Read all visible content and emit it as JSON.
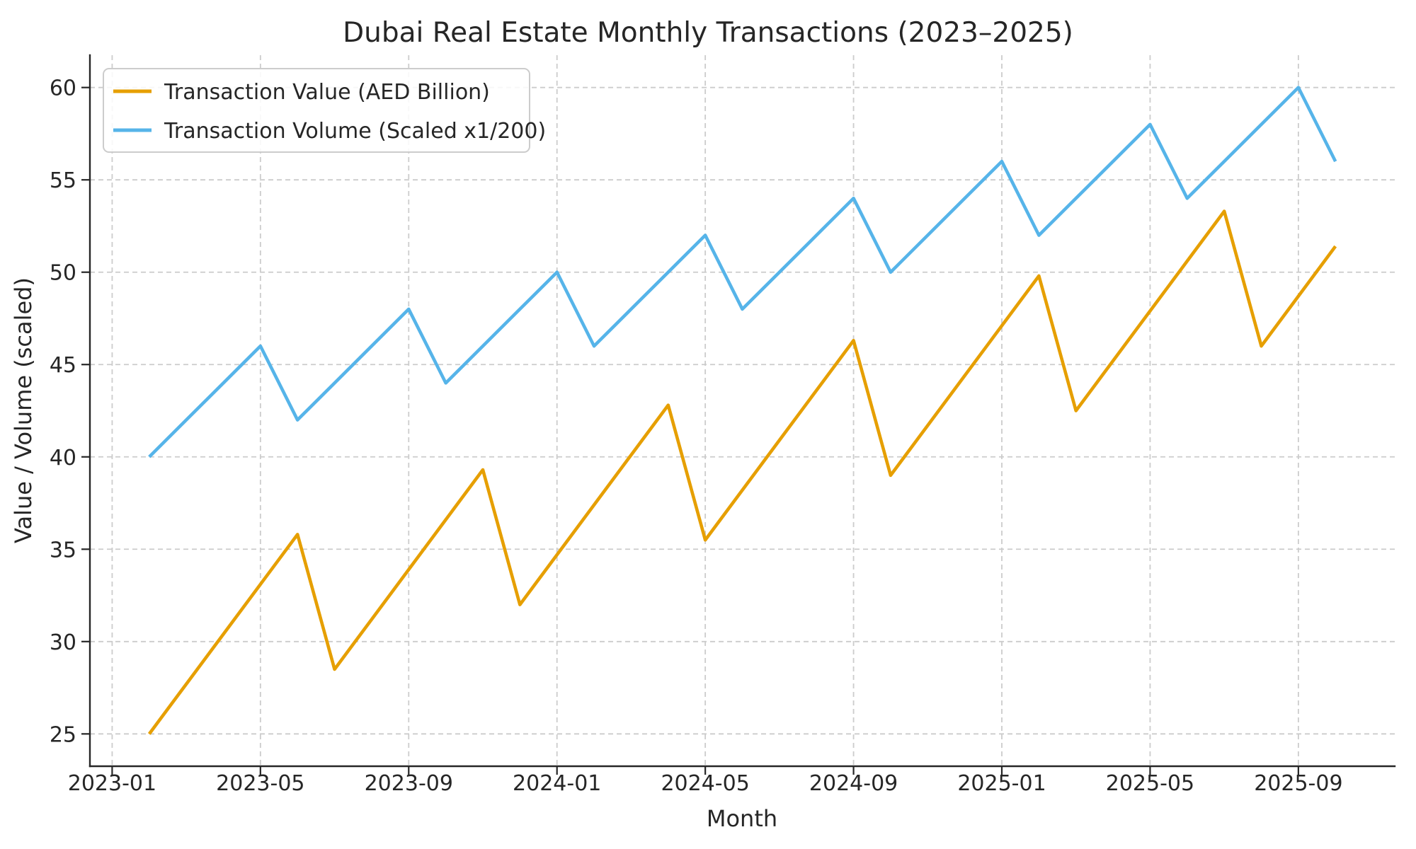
{
  "chart_data": {
    "type": "line",
    "title": "Dubai Real Estate Monthly Transactions (2023–2025)",
    "xlabel": "Month",
    "ylabel": "Value / Volume (scaled)",
    "x": [
      "2023-01",
      "2023-02",
      "2023-03",
      "2023-04",
      "2023-05",
      "2023-06",
      "2023-07",
      "2023-08",
      "2023-09",
      "2023-10",
      "2023-11",
      "2023-12",
      "2024-01",
      "2024-02",
      "2024-03",
      "2024-04",
      "2024-05",
      "2024-06",
      "2024-07",
      "2024-08",
      "2024-09",
      "2024-10",
      "2024-11",
      "2024-12",
      "2025-01",
      "2025-02",
      "2025-03",
      "2025-04",
      "2025-05",
      "2025-06",
      "2025-07",
      "2025-08",
      "2025-09"
    ],
    "series": [
      {
        "name": "Transaction Value (AED Billion)",
        "color": "#E69F00",
        "values": [
          25.0,
          27.7,
          30.4,
          33.1,
          35.8,
          28.5,
          31.2,
          33.9,
          36.6,
          39.3,
          32.0,
          34.7,
          37.4,
          40.1,
          42.8,
          35.5,
          38.2,
          40.9,
          43.6,
          46.3,
          39.0,
          41.7,
          44.4,
          47.1,
          49.8,
          42.5,
          45.2,
          47.9,
          50.6,
          53.3,
          46.0,
          48.7,
          51.4
        ]
      },
      {
        "name": "Transaction Volume (Scaled x1/200)",
        "color": "#56B4E9",
        "values": [
          40,
          42,
          44,
          46,
          42,
          44,
          46,
          48,
          44,
          46,
          48,
          50,
          46,
          48,
          50,
          52,
          48,
          50,
          52,
          54,
          50,
          52,
          54,
          56,
          52,
          54,
          56,
          58,
          54,
          56,
          58,
          60,
          56
        ]
      }
    ],
    "axes": {
      "x_tick_labels": [
        "2023-01",
        "2023-05",
        "2023-09",
        "2024-01",
        "2024-05",
        "2024-09",
        "2025-01",
        "2025-05",
        "2025-09"
      ],
      "y_ticks": [
        25,
        30,
        35,
        40,
        45,
        50,
        55,
        60
      ],
      "ylim": [
        23.25,
        61.75
      ],
      "xlim_month_units": [
        -0.6,
        34.6
      ],
      "points_plotted_at": "month-end",
      "grid": true,
      "grid_color": "#cccccc",
      "spine_color": "#262626",
      "text_color": "#262626",
      "legend_position": "upper left"
    }
  }
}
